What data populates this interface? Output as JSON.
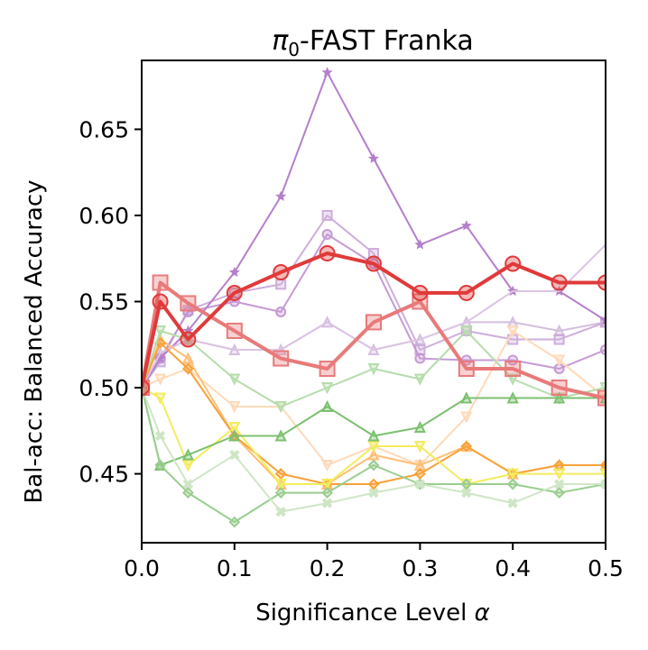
{
  "chart_data": {
    "type": "line",
    "title": "-FAST Franka",
    "title_symbol": "π",
    "title_subscript": "0",
    "xlabel": "Significance Level ",
    "xlabel_symbol": "α",
    "ylabel": "Bal-acc: Balanced Accuracy",
    "xlim": [
      0.0,
      0.5
    ],
    "ylim": [
      0.41,
      0.69
    ],
    "xticks": [
      "0.0",
      "0.1",
      "0.2",
      "0.3",
      "0.4",
      "0.5"
    ],
    "xtick_values": [
      0.0,
      0.1,
      0.2,
      0.3,
      0.4,
      0.5
    ],
    "yticks": [
      "0.45",
      "0.50",
      "0.55",
      "0.60",
      "0.65"
    ],
    "ytick_values": [
      0.45,
      0.5,
      0.55,
      0.6,
      0.65
    ],
    "grid": false,
    "x": [
      0.0,
      0.02,
      0.05,
      0.1,
      0.15,
      0.2,
      0.25,
      0.3,
      0.35,
      0.4,
      0.45,
      0.5
    ],
    "series": [
      {
        "color": "#d4bede",
        "marker": "triangle-up",
        "opacity": 1,
        "width": 2,
        "size": 10,
        "values": [
          0.5,
          0.52,
          0.528,
          0.522,
          0.522,
          0.538,
          0.522,
          0.528,
          0.538,
          0.538,
          0.533,
          0.538
        ]
      },
      {
        "color": "#c9a6d8",
        "marker": "square",
        "opacity": 0.9,
        "width": 2,
        "size": 10,
        "values": [
          0.5,
          0.515,
          0.545,
          0.555,
          0.56,
          0.6,
          0.578,
          0.522,
          0.533,
          0.528,
          0.528,
          0.538
        ]
      },
      {
        "color": "#c090d0",
        "marker": "circle",
        "opacity": 0.9,
        "width": 2,
        "size": 10,
        "values": [
          0.5,
          0.517,
          0.544,
          0.55,
          0.544,
          0.589,
          0.572,
          0.517,
          0.516,
          0.516,
          0.511,
          0.522
        ]
      },
      {
        "color": "#b57fcb",
        "marker": "star",
        "opacity": 1,
        "width": 2,
        "size": 10,
        "values": [
          0.5,
          0.517,
          0.533,
          0.567,
          0.611,
          0.683,
          0.633,
          0.583,
          0.594,
          0.556,
          0.556,
          0.539
        ]
      },
      {
        "color": "#dcc4e4",
        "marker": "none",
        "opacity": 1,
        "width": 2,
        "size": 0,
        "values": [
          0.5,
          0.52,
          0.528,
          0.522,
          0.522,
          0.538,
          0.522,
          0.528,
          0.538,
          0.556,
          0.556,
          0.583
        ]
      },
      {
        "color": "#ffd9b8",
        "marker": "triangle-down",
        "opacity": 1,
        "width": 2,
        "size": 10,
        "values": [
          0.5,
          0.505,
          0.511,
          0.489,
          0.489,
          0.455,
          0.466,
          0.455,
          0.483,
          0.533,
          0.516,
          0.494
        ]
      },
      {
        "color": "#ffbe76",
        "marker": "triangle-up",
        "opacity": 1,
        "width": 2,
        "size": 10,
        "values": [
          0.5,
          0.528,
          0.517,
          0.472,
          0.444,
          0.444,
          0.461,
          0.455,
          0.466,
          0.45,
          0.455,
          0.455
        ]
      },
      {
        "color": "#f6a23a",
        "marker": "diamond",
        "opacity": 1,
        "width": 2,
        "size": 10,
        "values": [
          0.5,
          0.526,
          0.511,
          0.472,
          0.45,
          0.444,
          0.444,
          0.45,
          0.466,
          0.45,
          0.455,
          0.455
        ]
      },
      {
        "color": "#f2ec5e",
        "marker": "triangle-down",
        "opacity": 1,
        "width": 2,
        "size": 10,
        "values": [
          0.5,
          0.494,
          0.455,
          0.477,
          0.444,
          0.444,
          0.466,
          0.466,
          0.444,
          0.45,
          0.45,
          0.45
        ]
      },
      {
        "color": "#b6dcac",
        "marker": "triangle-down",
        "opacity": 1,
        "width": 2,
        "size": 10,
        "values": [
          0.5,
          0.533,
          0.528,
          0.505,
          0.489,
          0.5,
          0.511,
          0.505,
          0.533,
          0.505,
          0.494,
          0.5
        ]
      },
      {
        "color": "#7cc070",
        "marker": "triangle-up",
        "opacity": 1,
        "width": 2,
        "size": 10,
        "values": [
          0.5,
          0.455,
          0.461,
          0.472,
          0.472,
          0.489,
          0.472,
          0.477,
          0.494,
          0.494,
          0.494,
          0.494
        ]
      },
      {
        "color": "#9acd90",
        "marker": "diamond",
        "opacity": 1,
        "width": 2,
        "size": 10,
        "values": [
          0.5,
          0.455,
          0.439,
          0.422,
          0.439,
          0.439,
          0.455,
          0.444,
          0.444,
          0.444,
          0.439,
          0.444
        ]
      },
      {
        "color": "#cfe6c6",
        "marker": "x-cross",
        "opacity": 1,
        "width": 2,
        "size": 10,
        "values": [
          0.5,
          0.472,
          0.444,
          0.461,
          0.428,
          0.433,
          0.439,
          0.444,
          0.439,
          0.433,
          0.444,
          0.444
        ]
      },
      {
        "color": "#e87a7a",
        "marker": "square",
        "opacity": 1,
        "width": 4,
        "size": 16,
        "values": [
          0.5,
          0.561,
          0.549,
          0.533,
          0.517,
          0.511,
          0.538,
          0.55,
          0.511,
          0.511,
          0.5,
          0.494
        ]
      },
      {
        "color": "#e03a3a",
        "marker": "circle",
        "opacity": 1,
        "width": 4,
        "size": 16,
        "values": [
          0.5,
          0.55,
          0.528,
          0.555,
          0.567,
          0.578,
          0.572,
          0.555,
          0.555,
          0.572,
          0.561,
          0.561
        ]
      }
    ]
  }
}
